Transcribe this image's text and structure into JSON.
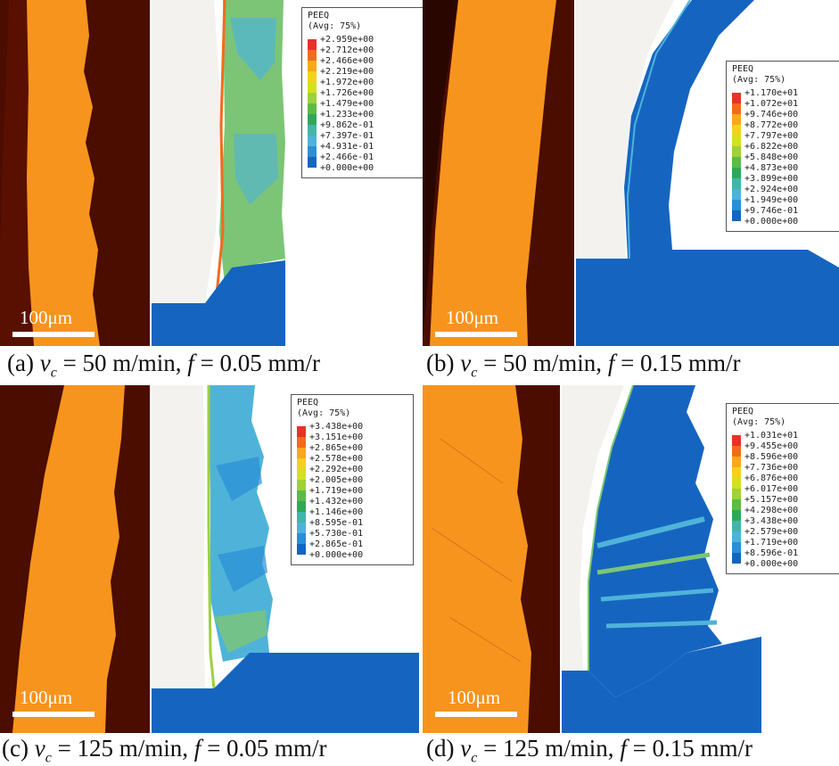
{
  "panels": [
    {
      "id": "a",
      "caption": {
        "prefix": "(a) ",
        "v": "v",
        "sub": "c",
        "speed": " = 50 m/min, ",
        "f": "f",
        "feed": " = 0.05 mm/r"
      },
      "scale_label": "100μm",
      "legend": {
        "title": "PEEQ",
        "subtitle": "(Avg: 75%)",
        "values": [
          "+2.959e+00",
          "+2.712e+00",
          "+2.466e+00",
          "+2.219e+00",
          "+1.972e+00",
          "+1.726e+00",
          "+1.479e+00",
          "+1.233e+00",
          "+9.862e-01",
          "+7.397e-01",
          "+4.931e-01",
          "+2.466e-01",
          "+0.000e+00"
        ]
      }
    },
    {
      "id": "b",
      "caption": {
        "prefix": "(b) ",
        "v": "v",
        "sub": "c",
        "speed": " = 50 m/min, ",
        "f": "f",
        "feed": " = 0.15 mm/r"
      },
      "scale_label": "100μm",
      "legend": {
        "title": "PEEQ",
        "subtitle": "(Avg: 75%)",
        "values": [
          "+1.170e+01",
          "+1.072e+01",
          "+9.746e+00",
          "+8.772e+00",
          "+7.797e+00",
          "+6.822e+00",
          "+5.848e+00",
          "+4.873e+00",
          "+3.899e+00",
          "+2.924e+00",
          "+1.949e+00",
          "+9.746e-01",
          "+0.000e+00"
        ]
      }
    },
    {
      "id": "c",
      "caption": {
        "prefix": "(c) ",
        "v": "v",
        "sub": "c",
        "speed": " = 125 m/min, ",
        "f": "f",
        "feed": " = 0.05 mm/r"
      },
      "scale_label": "100μm",
      "legend": {
        "title": "PEEQ",
        "subtitle": "(Avg: 75%)",
        "values": [
          "+3.438e+00",
          "+3.151e+00",
          "+2.865e+00",
          "+2.578e+00",
          "+2.292e+00",
          "+2.005e+00",
          "+1.719e+00",
          "+1.432e+00",
          "+1.146e+00",
          "+8.595e-01",
          "+5.730e-01",
          "+2.865e-01",
          "+0.000e+00"
        ]
      }
    },
    {
      "id": "d",
      "caption": {
        "prefix": "(d) ",
        "v": "v",
        "sub": "c",
        "speed": " = 125 m/min, ",
        "f": "f",
        "feed": " = 0.15 mm/r"
      },
      "scale_label": "100μm",
      "legend": {
        "title": "PEEQ",
        "subtitle": "(Avg: 75%)",
        "values": [
          "+1.031e+01",
          "+9.455e+00",
          "+8.596e+00",
          "+7.736e+00",
          "+6.876e+00",
          "+6.017e+00",
          "+5.157e+00",
          "+4.298e+00",
          "+3.438e+00",
          "+2.579e+00",
          "+1.719e+00",
          "+8.596e-01",
          "+0.000e+00"
        ]
      }
    }
  ],
  "colors": {
    "micro_background": "#4a0d00",
    "chip_orange": "#f7941d",
    "sim_blue": "#1565c0",
    "sim_light": "#4fb3d9",
    "sim_green": "#7cc576",
    "legend_scale": [
      "#e8312a",
      "#f26b1d",
      "#f7a81b",
      "#f4d21c",
      "#d4e11f",
      "#9fd13a",
      "#5dbb46",
      "#2fa85a",
      "#41b6a8",
      "#4fb3d9",
      "#2a8fd6",
      "#1565c0"
    ]
  }
}
